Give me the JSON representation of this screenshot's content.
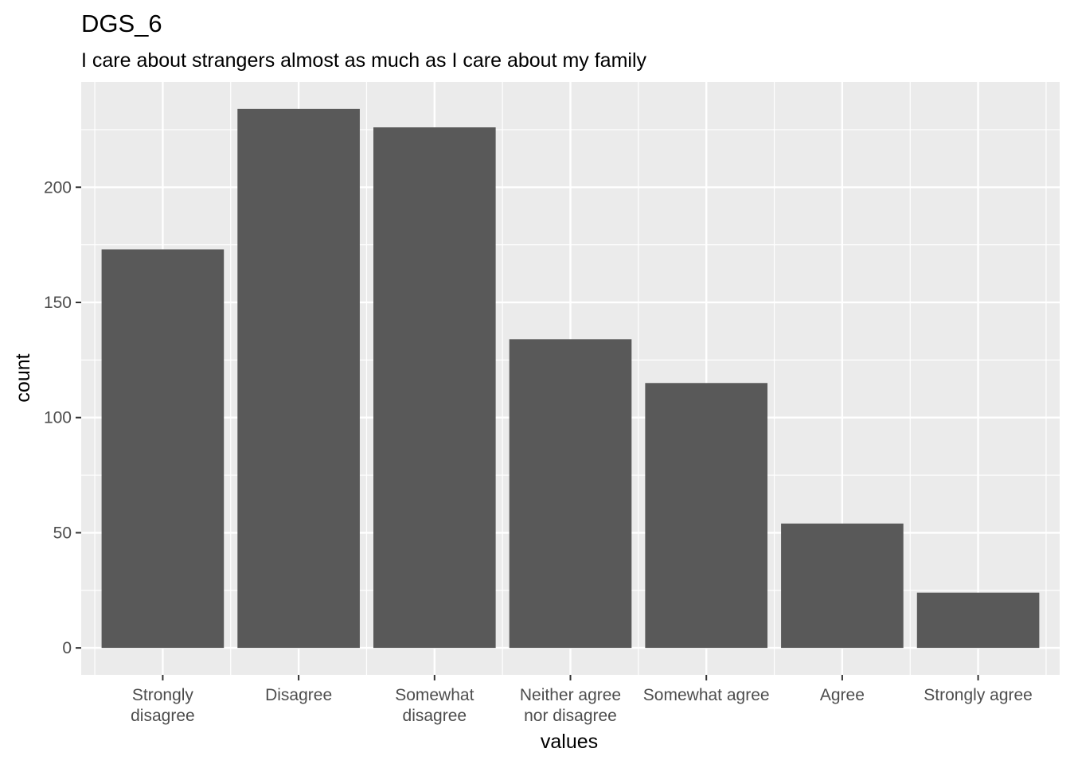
{
  "chart_data": {
    "type": "bar",
    "title": "DGS_6",
    "subtitle": "I care about strangers almost as much as I care about my family",
    "xlabel": "values",
    "ylabel": "count",
    "categories": [
      [
        "Strongly",
        "disagree"
      ],
      [
        "Disagree"
      ],
      [
        "Somewhat",
        "disagree"
      ],
      [
        "Neither agree",
        "nor disagree"
      ],
      [
        "Somewhat agree"
      ],
      [
        "Agree"
      ],
      [
        "Strongly agree"
      ]
    ],
    "values": [
      173,
      234,
      226,
      134,
      115,
      54,
      24
    ],
    "ylim": [
      -11.7,
      245.7
    ],
    "yticks": [
      0,
      50,
      100,
      150,
      200
    ],
    "grid": true,
    "legend": "none",
    "colors": {
      "bar": "#595959",
      "panel": "#EBEBEB",
      "grid": "#FFFFFF",
      "tick_text": "#4D4D4D",
      "tick_mark": "#333333"
    }
  }
}
